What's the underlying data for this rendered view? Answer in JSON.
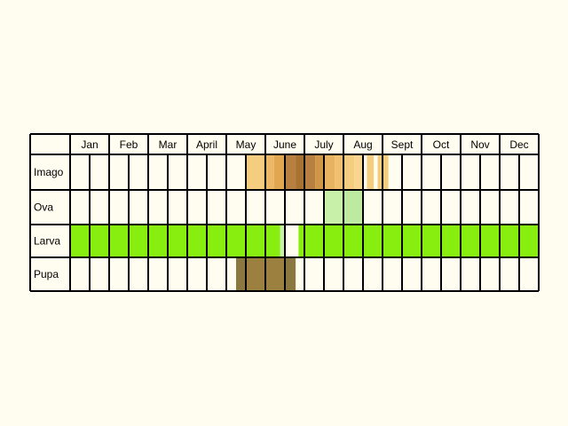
{
  "months": [
    "Jan",
    "Feb",
    "Mar",
    "April",
    "May",
    "June",
    "July",
    "Aug",
    "Sept",
    "Oct",
    "Nov",
    "Dec"
  ],
  "rows": [
    {
      "label": "Imago",
      "key": "imago",
      "bands": [
        {
          "from": 9.0,
          "to": 9.9,
          "color": "#f5cd7f"
        },
        {
          "from": 9.9,
          "to": 10.45,
          "color": "#ecb865"
        },
        {
          "from": 10.45,
          "to": 11.0,
          "color": "#e0a650"
        },
        {
          "from": 11.0,
          "to": 11.55,
          "color": "#b88040"
        },
        {
          "from": 11.55,
          "to": 12.0,
          "color": "#a87230"
        },
        {
          "from": 12.0,
          "to": 12.55,
          "color": "#b88040"
        },
        {
          "from": 12.55,
          "to": 13.0,
          "color": "#cf9646"
        },
        {
          "from": 13.0,
          "to": 13.55,
          "color": "#e8b360"
        },
        {
          "from": 13.55,
          "to": 14.0,
          "color": "#f0c070"
        },
        {
          "from": 14.0,
          "to": 14.55,
          "color": "#f5cd7f"
        },
        {
          "from": 14.55,
          "to": 15.0,
          "color": "#f8d690"
        },
        {
          "from": 15.2,
          "to": 15.55,
          "color": "#f5cd7f"
        },
        {
          "from": 15.75,
          "to": 16.3,
          "color": "#f5cd7f"
        }
      ]
    },
    {
      "label": "Ova",
      "key": "ova",
      "bands": [
        {
          "from": 13.0,
          "to": 14.0,
          "color": "#c8f0a8"
        },
        {
          "from": 14.0,
          "to": 15.0,
          "color": "#bdeaa0"
        }
      ]
    },
    {
      "label": "Larva",
      "key": "larva",
      "bands": [
        {
          "from": 0.0,
          "to": 10.75,
          "color": "#88ee10"
        },
        {
          "from": 10.75,
          "to": 11.0,
          "color": "#c8f0a8"
        },
        {
          "from": 11.7,
          "to": 24.0,
          "color": "#88ee10"
        }
      ]
    },
    {
      "label": "Pupa",
      "key": "pupa",
      "bands": [
        {
          "from": 8.5,
          "to": 9.0,
          "color": "#8a7840"
        },
        {
          "from": 9.0,
          "to": 11.0,
          "color": "#9c8040"
        },
        {
          "from": 11.0,
          "to": 11.55,
          "color": "#8a7840"
        }
      ]
    }
  ]
}
